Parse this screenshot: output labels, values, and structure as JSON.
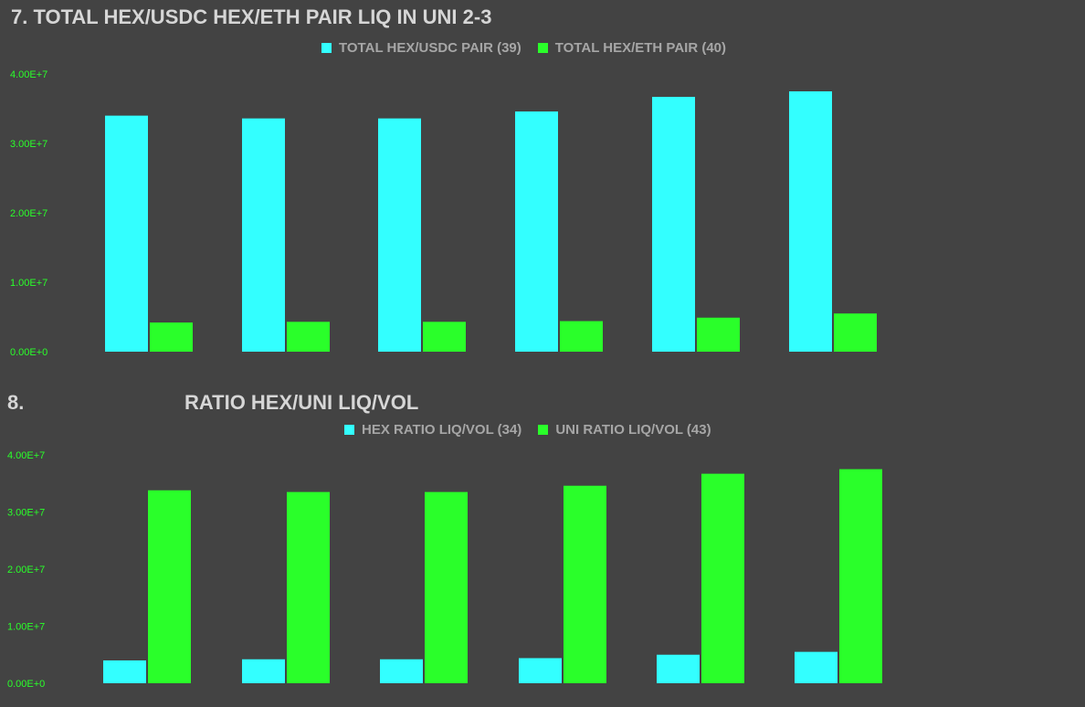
{
  "colors": {
    "cyan": "#33ffff",
    "green": "#2aff2a",
    "background": "#434343",
    "tick": "#2aff2a"
  },
  "charts": [
    {
      "title": "7. TOTAL HEX/USDC HEX/ETH PAIR LIQ IN UNI 2-3",
      "legend": [
        {
          "label": "TOTAL HEX/USDC PAIR (39)",
          "color": "#33ffff"
        },
        {
          "label": "TOTAL HEX/ETH PAIR (40)",
          "color": "#2aff2a"
        }
      ]
    },
    {
      "title_number": "8.",
      "title": "RATIO HEX/UNI LIQ/VOL",
      "legend": [
        {
          "label": "HEX RATIO LIQ/VOL (34)",
          "color": "#33ffff"
        },
        {
          "label": "UNI RATIO LIQ/VOL (43)",
          "color": "#2aff2a"
        }
      ]
    }
  ],
  "chart_data": [
    {
      "type": "bar",
      "categories": [
        "",
        "",
        "",
        "",
        "",
        ""
      ],
      "series": [
        {
          "name": "TOTAL HEX/USDC PAIR (39)",
          "color": "#33ffff",
          "values": [
            34000000,
            33600000,
            33600000,
            34600000,
            36700000,
            37500000
          ]
        },
        {
          "name": "TOTAL HEX/ETH PAIR (40)",
          "color": "#2aff2a",
          "values": [
            4200000,
            4300000,
            4300000,
            4400000,
            4900000,
            5500000
          ]
        }
      ],
      "y_ticks": [
        "0.00E+0",
        "1.00E+7",
        "2.00E+7",
        "3.00E+7",
        "4.00E+7"
      ],
      "ylim": [
        0,
        40000000
      ],
      "grid": false,
      "legend_position": "top-center"
    },
    {
      "type": "bar",
      "categories": [
        "",
        "",
        "",
        "",
        "",
        ""
      ],
      "series": [
        {
          "name": "HEX RATIO LIQ/VOL (34)",
          "color": "#33ffff",
          "values": [
            4000000,
            4200000,
            4200000,
            4400000,
            5000000,
            5500000
          ]
        },
        {
          "name": "UNI RATIO LIQ/VOL (43)",
          "color": "#2aff2a",
          "values": [
            33800000,
            33500000,
            33500000,
            34600000,
            36700000,
            37500000
          ]
        }
      ],
      "y_ticks": [
        "0.00E+0",
        "1.00E+7",
        "2.00E+7",
        "3.00E+7",
        "4.00E+7"
      ],
      "ylim": [
        0,
        40000000
      ],
      "grid": false,
      "legend_position": "top-center"
    }
  ]
}
